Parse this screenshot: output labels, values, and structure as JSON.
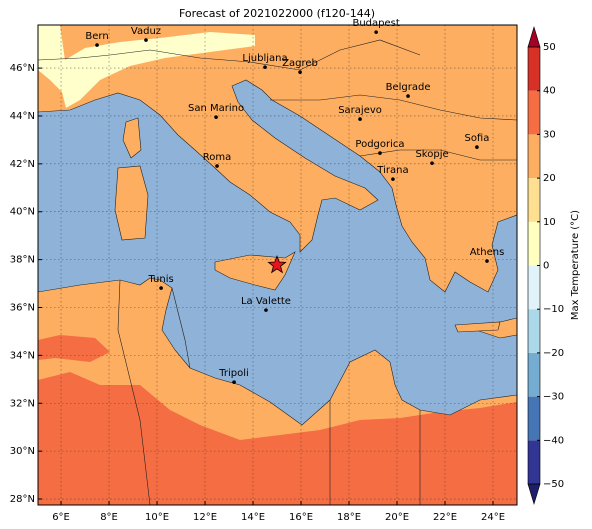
{
  "title": "Forecast of 2021022000 (f120-144)",
  "map": {
    "xlim": [
      5.04,
      25.0
    ],
    "ylim": [
      27.75,
      47.8
    ],
    "xticks": [
      {
        "value": 6,
        "label": "6°E"
      },
      {
        "value": 8,
        "label": "8°E"
      },
      {
        "value": 10,
        "label": "10°E"
      },
      {
        "value": 12,
        "label": "12°E"
      },
      {
        "value": 14,
        "label": "14°E"
      },
      {
        "value": 16,
        "label": "16°E"
      },
      {
        "value": 18,
        "label": "18°E"
      },
      {
        "value": 20,
        "label": "20°E"
      },
      {
        "value": 22,
        "label": "22°E"
      },
      {
        "value": 24,
        "label": "24°E"
      }
    ],
    "yticks": [
      {
        "value": 28,
        "label": "28°N"
      },
      {
        "value": 30,
        "label": "30°N"
      },
      {
        "value": 32,
        "label": "32°N"
      },
      {
        "value": 34,
        "label": "34°N"
      },
      {
        "value": 36,
        "label": "36°N"
      },
      {
        "value": 38,
        "label": "38°N"
      },
      {
        "value": 40,
        "label": "40°N"
      },
      {
        "value": 42,
        "label": "42°N"
      },
      {
        "value": 44,
        "label": "44°N"
      },
      {
        "value": 46,
        "label": "46°N"
      }
    ],
    "grid": true,
    "cities": [
      {
        "name": "Bern",
        "lon": 7.5,
        "lat": 46.96
      },
      {
        "name": "Vaduz",
        "lon": 9.54,
        "lat": 47.17
      },
      {
        "name": "Budapest",
        "lon": 19.13,
        "lat": 47.5
      },
      {
        "name": "Ljubljana",
        "lon": 14.5,
        "lat": 46.04
      },
      {
        "name": "Zagreb",
        "lon": 15.96,
        "lat": 45.83
      },
      {
        "name": "Belgrade",
        "lon": 20.46,
        "lat": 44.83
      },
      {
        "name": "San Marino",
        "lon": 12.46,
        "lat": 43.95
      },
      {
        "name": "Sarajevo",
        "lon": 18.46,
        "lat": 43.87
      },
      {
        "name": "Sofia",
        "lon": 23.33,
        "lat": 42.7
      },
      {
        "name": "Podgorica",
        "lon": 19.29,
        "lat": 42.45
      },
      {
        "name": "Skopje",
        "lon": 21.46,
        "lat": 42.03
      },
      {
        "name": "Roma",
        "lon": 12.5,
        "lat": 41.91
      },
      {
        "name": "Tirana",
        "lon": 19.83,
        "lat": 41.36
      },
      {
        "name": "Athens",
        "lon": 23.75,
        "lat": 37.94
      },
      {
        "name": "Tunis",
        "lon": 10.17,
        "lat": 36.81
      },
      {
        "name": "La Valette",
        "lon": 14.54,
        "lat": 35.89
      },
      {
        "name": "Tripoli",
        "lon": 13.21,
        "lat": 32.88
      }
    ],
    "marker": {
      "lon": 15.0,
      "lat": 37.77
    }
  },
  "colorbar": {
    "label": "Max Temperature (°C)",
    "ticks": [
      {
        "value": -50,
        "label": "−50"
      },
      {
        "value": -40,
        "label": "−40"
      },
      {
        "value": -30,
        "label": "−30"
      },
      {
        "value": -20,
        "label": "−20"
      },
      {
        "value": -10,
        "label": "−10"
      },
      0,
      10,
      20,
      30,
      40,
      50
    ],
    "colors": [
      "#313695",
      "#4575b4",
      "#74add1",
      "#abd9e9",
      "#e0f3f8",
      "#ffffbf",
      "#fee090",
      "#fdae61",
      "#f46d43",
      "#d73027"
    ],
    "under": "#1d1f6b",
    "over": "#a50026"
  }
}
